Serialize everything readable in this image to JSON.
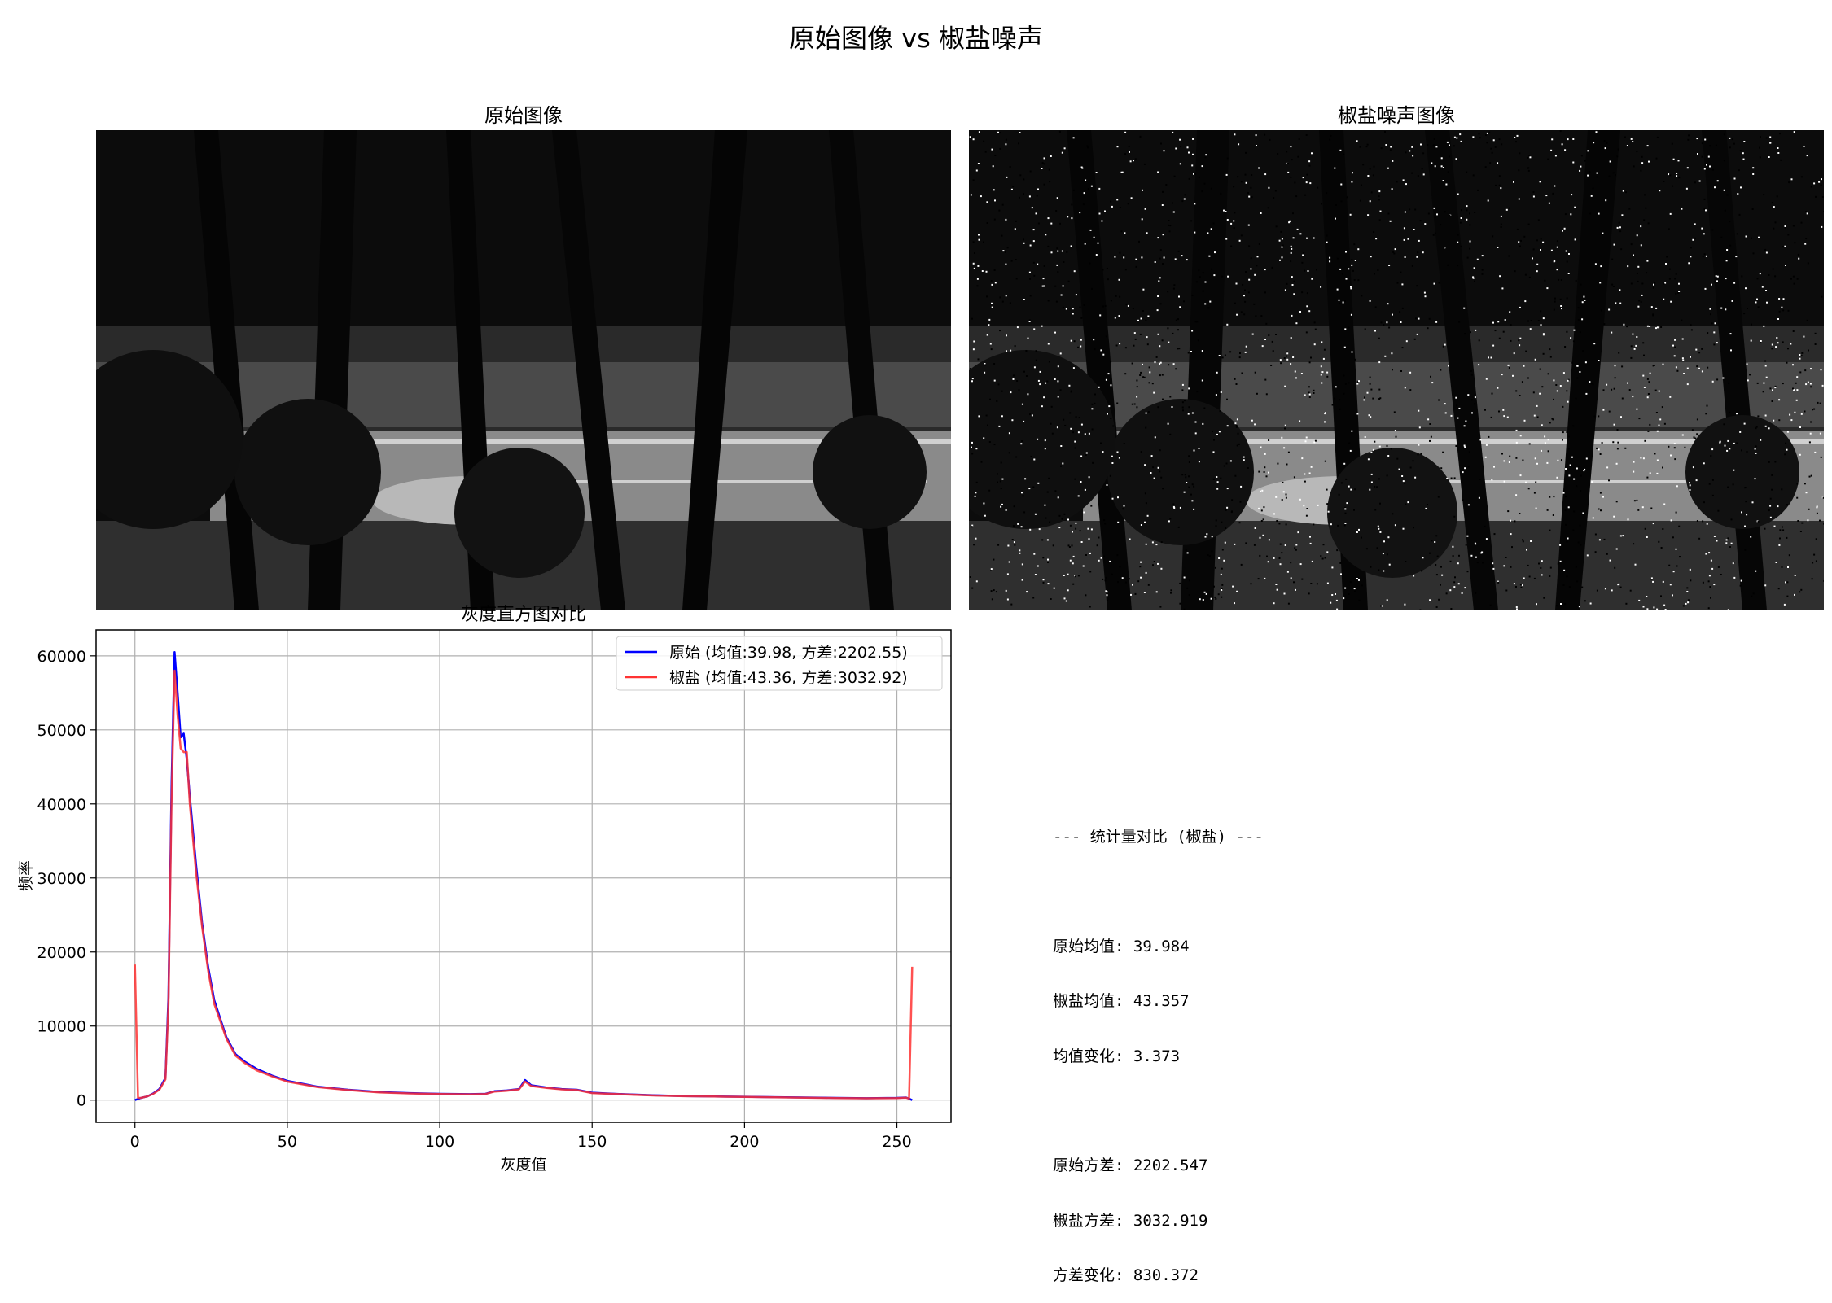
{
  "figure": {
    "title": "原始图像 vs 椒盐噪声",
    "panels": {
      "original_title": "原始图像",
      "noisy_title": "椒盐噪声图像"
    }
  },
  "stats": {
    "header": "--- 统计量对比 (椒盐) ---",
    "lines_mean": [
      "原始均值: 39.984",
      "椒盐均值: 43.357",
      "均值变化: 3.373"
    ],
    "lines_var": [
      "原始方差: 2202.547",
      "椒盐方差: 3032.919",
      "方差变化: 830.372"
    ]
  },
  "chart_data": {
    "type": "line",
    "title": "灰度直方图对比",
    "xlabel": "灰度值",
    "ylabel": "频率",
    "xlim": [
      -12.75,
      267.75
    ],
    "ylim": [
      -3000,
      63500
    ],
    "xticks": [
      0,
      50,
      100,
      150,
      200,
      250
    ],
    "yticks": [
      0,
      10000,
      20000,
      30000,
      40000,
      50000,
      60000
    ],
    "grid": true,
    "legend_position": "top-right",
    "series": [
      {
        "name": "原始 (均值:39.98, 方差:2202.55)",
        "color": "#0000ff",
        "points": [
          [
            0,
            0
          ],
          [
            2,
            300
          ],
          [
            4,
            500
          ],
          [
            6,
            900
          ],
          [
            8,
            1500
          ],
          [
            10,
            3000
          ],
          [
            11,
            14000
          ],
          [
            12,
            42000
          ],
          [
            13,
            60500
          ],
          [
            14,
            55000
          ],
          [
            15,
            49000
          ],
          [
            16,
            49500
          ],
          [
            17,
            46000
          ],
          [
            18,
            41000
          ],
          [
            20,
            32000
          ],
          [
            22,
            24000
          ],
          [
            24,
            18000
          ],
          [
            26,
            13500
          ],
          [
            28,
            11000
          ],
          [
            30,
            8500
          ],
          [
            33,
            6200
          ],
          [
            36,
            5200
          ],
          [
            40,
            4200
          ],
          [
            45,
            3300
          ],
          [
            50,
            2600
          ],
          [
            60,
            1800
          ],
          [
            70,
            1400
          ],
          [
            80,
            1100
          ],
          [
            90,
            950
          ],
          [
            100,
            850
          ],
          [
            110,
            800
          ],
          [
            115,
            850
          ],
          [
            118,
            1200
          ],
          [
            122,
            1300
          ],
          [
            126,
            1500
          ],
          [
            128,
            2700
          ],
          [
            130,
            2000
          ],
          [
            135,
            1700
          ],
          [
            140,
            1500
          ],
          [
            145,
            1400
          ],
          [
            150,
            1000
          ],
          [
            160,
            800
          ],
          [
            170,
            650
          ],
          [
            180,
            550
          ],
          [
            190,
            500
          ],
          [
            200,
            450
          ],
          [
            210,
            400
          ],
          [
            220,
            350
          ],
          [
            230,
            300
          ],
          [
            240,
            250
          ],
          [
            250,
            300
          ],
          [
            253,
            350
          ],
          [
            254,
            200
          ],
          [
            255,
            0
          ]
        ]
      },
      {
        "name": "椒盐 (均值:43.36, 方差:3032.92)",
        "color": "#ff3333",
        "points": [
          [
            0,
            18300
          ],
          [
            1,
            300
          ],
          [
            2,
            300
          ],
          [
            4,
            500
          ],
          [
            6,
            850
          ],
          [
            8,
            1400
          ],
          [
            10,
            2800
          ],
          [
            11,
            13000
          ],
          [
            12,
            40000
          ],
          [
            13,
            58000
          ],
          [
            14,
            52000
          ],
          [
            15,
            47500
          ],
          [
            16,
            47000
          ],
          [
            17,
            47000
          ],
          [
            18,
            40000
          ],
          [
            20,
            31000
          ],
          [
            22,
            23500
          ],
          [
            24,
            17500
          ],
          [
            26,
            13000
          ],
          [
            28,
            10700
          ],
          [
            30,
            8300
          ],
          [
            33,
            6000
          ],
          [
            36,
            5000
          ],
          [
            40,
            4000
          ],
          [
            45,
            3200
          ],
          [
            50,
            2500
          ],
          [
            60,
            1750
          ],
          [
            70,
            1350
          ],
          [
            80,
            1050
          ],
          [
            90,
            900
          ],
          [
            100,
            820
          ],
          [
            110,
            780
          ],
          [
            115,
            820
          ],
          [
            118,
            1150
          ],
          [
            122,
            1250
          ],
          [
            126,
            1450
          ],
          [
            128,
            2500
          ],
          [
            130,
            1900
          ],
          [
            135,
            1650
          ],
          [
            140,
            1450
          ],
          [
            145,
            1350
          ],
          [
            150,
            950
          ],
          [
            160,
            780
          ],
          [
            170,
            630
          ],
          [
            180,
            530
          ],
          [
            190,
            480
          ],
          [
            200,
            430
          ],
          [
            210,
            380
          ],
          [
            220,
            330
          ],
          [
            230,
            280
          ],
          [
            240,
            240
          ],
          [
            250,
            280
          ],
          [
            253,
            320
          ],
          [
            254,
            200
          ],
          [
            255,
            18000
          ]
        ]
      }
    ]
  }
}
